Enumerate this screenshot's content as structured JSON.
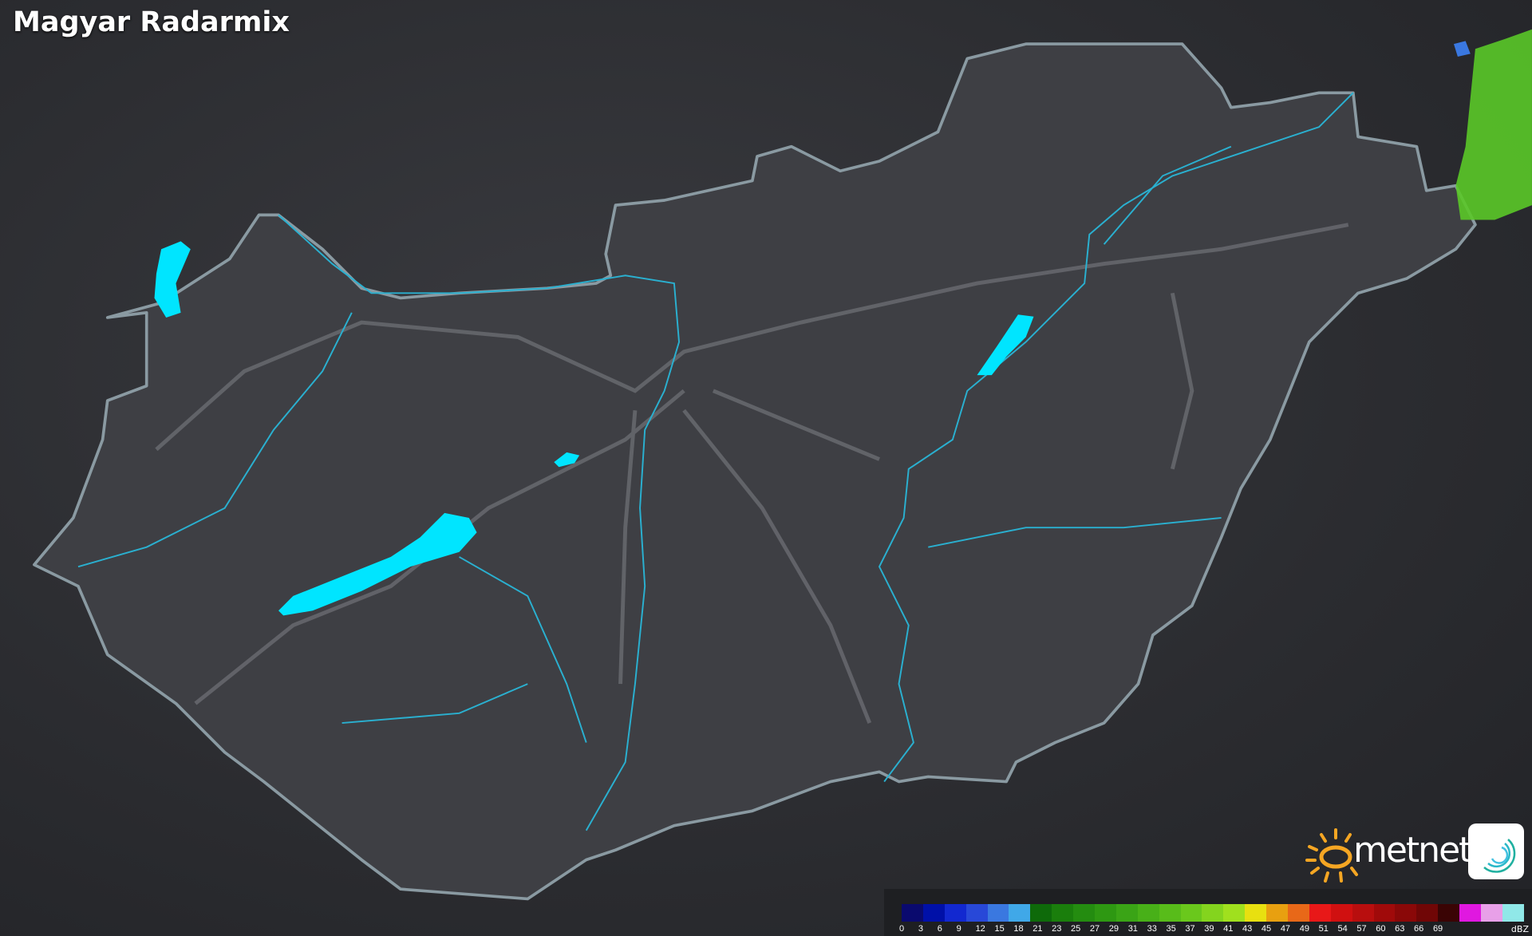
{
  "title": "Magyar Radarmix",
  "brand": {
    "name": "metnet",
    "sun_color": "#f5a623"
  },
  "legend": {
    "unit": "dBZ",
    "labels": [
      "0",
      "3",
      "6",
      "9",
      "12",
      "15",
      "18",
      "21",
      "23",
      "25",
      "27",
      "29",
      "31",
      "33",
      "35",
      "37",
      "39",
      "41",
      "43",
      "45",
      "47",
      "49",
      "51",
      "54",
      "57",
      "60",
      "63",
      "66",
      "69"
    ],
    "colors": [
      "#0a0a6e",
      "#0010a8",
      "#1228d0",
      "#2848d8",
      "#3a78e0",
      "#40a8e8",
      "#0e6a0a",
      "#1a7e0c",
      "#248c10",
      "#2e9812",
      "#3aa416",
      "#48b018",
      "#58bc1a",
      "#6ac81c",
      "#84d41e",
      "#a0e01e",
      "#e8e010",
      "#e8a010",
      "#e86818",
      "#e81818",
      "#d01010",
      "#b80e0e",
      "#a00a0a",
      "#8a0808",
      "#700606",
      "#3a0404",
      "#e018e0",
      "#e8a0e8",
      "#90e8e8"
    ]
  },
  "colors": {
    "lakes": "#00e5ff",
    "rivers": "#2ab0d0",
    "border": "#8a9298",
    "radar_echo": "#5ac828"
  }
}
